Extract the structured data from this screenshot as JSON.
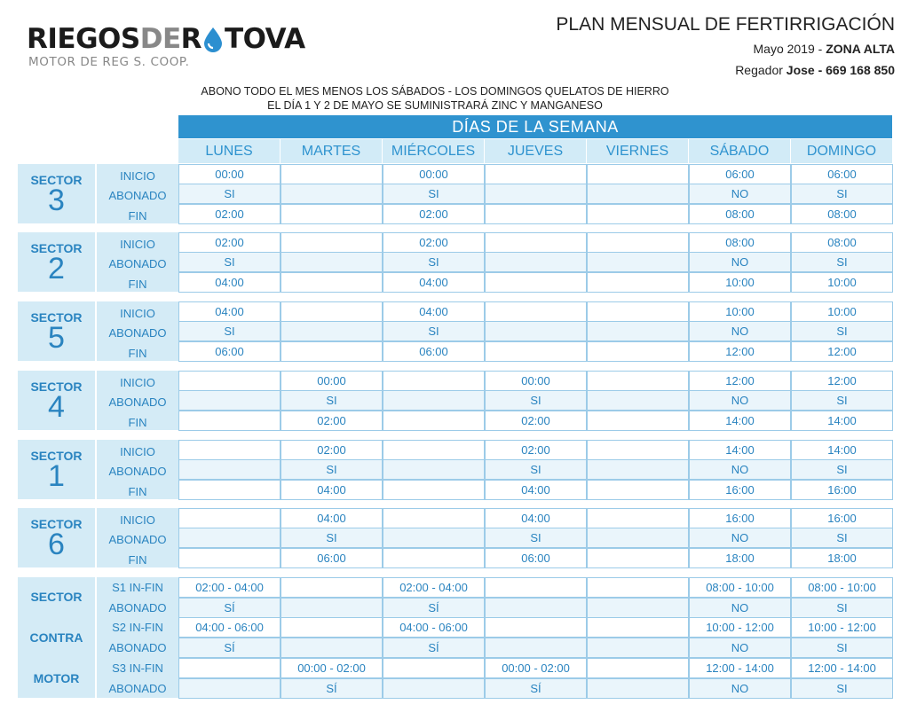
{
  "logo": {
    "part1": "RIEGOS",
    "part2": "DE",
    "part3": "R",
    "part4": "TOVA",
    "subtitle": "MOTOR DE REG S. COOP."
  },
  "header": {
    "title": "PLAN MENSUAL DE FERTIRRIGACIÓN",
    "month": "Mayo 2019 - ",
    "zone": "ZONA ALTA",
    "regador_label": "Regador ",
    "regador_name": "Jose - 669 168 850"
  },
  "notes": [
    "ABONO TODO EL MES MENOS LOS SÁBADOS - LOS DOMINGOS QUELATOS DE HIERRO",
    "EL DÍA 1 Y 2 DE MAYO SE SUMINISTRARÁ ZINC Y MANGANESO"
  ],
  "table": {
    "title": "DÍAS DE LA SEMANA",
    "days": [
      "LUNES",
      "MARTES",
      "MIÉRCOLES",
      "JUEVES",
      "VIERNES",
      "SÁBADO",
      "DOMINGO"
    ],
    "row_labels": [
      "INICIO",
      "ABONADO",
      "FIN"
    ],
    "sector_word": "SECTOR",
    "sectors": [
      {
        "num": "3",
        "rows": [
          [
            "00:00",
            "",
            "00:00",
            "",
            "",
            "06:00",
            "06:00"
          ],
          [
            "SI",
            "",
            "SI",
            "",
            "",
            "NO",
            "SI"
          ],
          [
            "02:00",
            "",
            "02:00",
            "",
            "",
            "08:00",
            "08:00"
          ]
        ]
      },
      {
        "num": "2",
        "rows": [
          [
            "02:00",
            "",
            "02:00",
            "",
            "",
            "08:00",
            "08:00"
          ],
          [
            "SI",
            "",
            "SI",
            "",
            "",
            "NO",
            "SI"
          ],
          [
            "04:00",
            "",
            "04:00",
            "",
            "",
            "10:00",
            "10:00"
          ]
        ]
      },
      {
        "num": "5",
        "rows": [
          [
            "04:00",
            "",
            "04:00",
            "",
            "",
            "10:00",
            "10:00"
          ],
          [
            "SI",
            "",
            "SI",
            "",
            "",
            "NO",
            "SI"
          ],
          [
            "06:00",
            "",
            "06:00",
            "",
            "",
            "12:00",
            "12:00"
          ]
        ]
      },
      {
        "num": "4",
        "rows": [
          [
            "",
            "00:00",
            "",
            "00:00",
            "",
            "12:00",
            "12:00"
          ],
          [
            "",
            "SI",
            "",
            "SI",
            "",
            "NO",
            "SI"
          ],
          [
            "",
            "02:00",
            "",
            "02:00",
            "",
            "14:00",
            "14:00"
          ]
        ]
      },
      {
        "num": "1",
        "rows": [
          [
            "",
            "02:00",
            "",
            "02:00",
            "",
            "14:00",
            "14:00"
          ],
          [
            "",
            "SI",
            "",
            "SI",
            "",
            "NO",
            "SI"
          ],
          [
            "",
            "04:00",
            "",
            "04:00",
            "",
            "16:00",
            "16:00"
          ]
        ]
      },
      {
        "num": "6",
        "rows": [
          [
            "",
            "04:00",
            "",
            "04:00",
            "",
            "16:00",
            "16:00"
          ],
          [
            "",
            "SI",
            "",
            "SI",
            "",
            "NO",
            "SI"
          ],
          [
            "",
            "06:00",
            "",
            "06:00",
            "",
            "18:00",
            "18:00"
          ]
        ]
      }
    ],
    "contra": {
      "words": [
        "SECTOR",
        "CONTRA",
        "MOTOR"
      ],
      "row_labels": [
        "S1 IN-FIN",
        "ABONADO",
        "S2 IN-FIN",
        "ABONADO",
        "S3 IN-FIN",
        "ABONADO"
      ],
      "rows": [
        [
          "02:00 - 04:00",
          "",
          "02:00 - 04:00",
          "",
          "",
          "08:00 - 10:00",
          "08:00 - 10:00"
        ],
        [
          "SÍ",
          "",
          "SÍ",
          "",
          "",
          "NO",
          "SI"
        ],
        [
          "04:00 - 06:00",
          "",
          "04:00 - 06:00",
          "",
          "",
          "10:00 - 12:00",
          "10:00 - 12:00"
        ],
        [
          "SÍ",
          "",
          "SÍ",
          "",
          "",
          "NO",
          "SI"
        ],
        [
          "",
          "00:00 - 02:00",
          "",
          "00:00 - 02:00",
          "",
          "12:00 - 14:00",
          "12:00 - 14:00"
        ],
        [
          "",
          "SÍ",
          "",
          "SÍ",
          "",
          "NO",
          "SI"
        ]
      ]
    }
  }
}
